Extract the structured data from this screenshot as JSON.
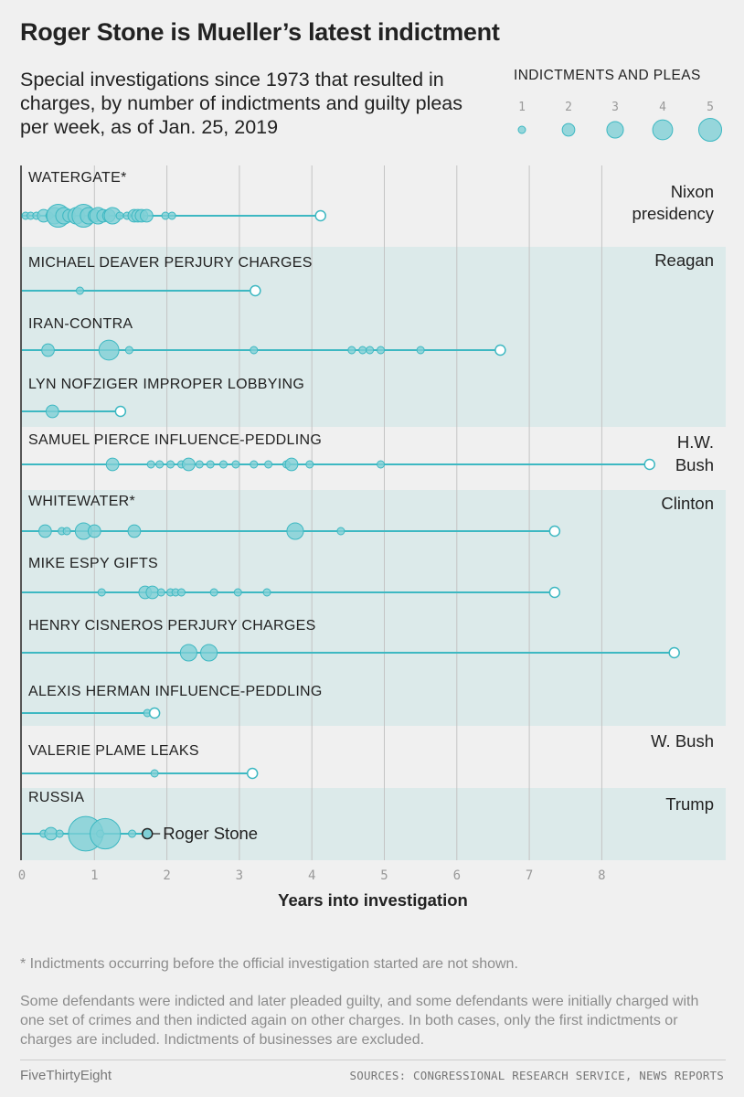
{
  "header": {
    "title": "Roger Stone is Mueller’s latest indictment",
    "subtitle": "Special investigations since 1973 that resulted in charges, by number of indictments and guilty pleas per week, as of Jan. 25, 2019"
  },
  "legend": {
    "title": "INDICTMENTS AND PLEAS",
    "sizes": [
      1,
      2,
      3,
      4,
      5
    ]
  },
  "colors": {
    "dot_fill": "#7fcfd6",
    "dot_stroke": "#3db8c2",
    "line": "#3db8c2",
    "band": "#dceaea",
    "background": "#f0f0f0"
  },
  "chart_data": {
    "type": "scatter",
    "xlabel": "Years into investigation",
    "xlim": [
      0,
      9.7
    ],
    "xticks": [
      0,
      1,
      2,
      3,
      4,
      5,
      6,
      7,
      8
    ],
    "presidencies": [
      {
        "label": "Nixon\npresidency",
        "rows": [
          0
        ],
        "shaded": false
      },
      {
        "label": "Reagan",
        "rows": [
          1,
          2,
          3
        ],
        "shaded": true
      },
      {
        "label": "H.W.\nBush",
        "rows": [
          4
        ],
        "shaded": false
      },
      {
        "label": "Clinton",
        "rows": [
          5,
          6,
          7,
          8
        ],
        "shaded": true
      },
      {
        "label": "W. Bush",
        "rows": [
          9
        ],
        "shaded": false
      },
      {
        "label": "Trump",
        "rows": [
          10
        ],
        "shaded": true
      }
    ],
    "investigations": [
      {
        "name": "WATERGATE*",
        "end": 4.12,
        "points": [
          [
            0.05,
            1
          ],
          [
            0.12,
            1
          ],
          [
            0.2,
            1
          ],
          [
            0.3,
            2
          ],
          [
            0.38,
            1
          ],
          [
            0.45,
            3
          ],
          [
            0.5,
            5
          ],
          [
            0.58,
            3
          ],
          [
            0.65,
            2
          ],
          [
            0.75,
            3
          ],
          [
            0.85,
            5
          ],
          [
            0.92,
            3
          ],
          [
            1.0,
            2
          ],
          [
            1.05,
            3
          ],
          [
            1.12,
            2
          ],
          [
            1.2,
            2
          ],
          [
            1.25,
            3
          ],
          [
            1.35,
            1
          ],
          [
            1.45,
            1
          ],
          [
            1.55,
            2
          ],
          [
            1.6,
            2
          ],
          [
            1.65,
            2
          ],
          [
            1.72,
            2
          ],
          [
            1.98,
            1
          ],
          [
            2.07,
            1
          ]
        ]
      },
      {
        "name": "MICHAEL DEAVER PERJURY CHARGES",
        "end": 3.22,
        "points": [
          [
            0.8,
            1
          ]
        ]
      },
      {
        "name": "IRAN-CONTRA",
        "end": 6.6,
        "points": [
          [
            0.36,
            2
          ],
          [
            1.2,
            4
          ],
          [
            1.48,
            1
          ],
          [
            3.2,
            1
          ],
          [
            4.55,
            1
          ],
          [
            4.7,
            1
          ],
          [
            4.8,
            1
          ],
          [
            4.95,
            1
          ],
          [
            5.5,
            1
          ]
        ]
      },
      {
        "name": "LYN NOFZIGER IMPROPER LOBBYING",
        "end": 1.36,
        "points": [
          [
            0.42,
            2
          ]
        ]
      },
      {
        "name": "SAMUEL PIERCE INFLUENCE-PEDDLING",
        "end": 8.66,
        "points": [
          [
            1.25,
            2
          ],
          [
            1.78,
            1
          ],
          [
            1.9,
            1
          ],
          [
            2.05,
            1
          ],
          [
            2.2,
            1
          ],
          [
            2.3,
            2
          ],
          [
            2.45,
            1
          ],
          [
            2.6,
            1
          ],
          [
            2.78,
            1
          ],
          [
            2.95,
            1
          ],
          [
            3.2,
            1
          ],
          [
            3.4,
            1
          ],
          [
            3.65,
            1
          ],
          [
            3.72,
            2
          ],
          [
            3.97,
            1
          ],
          [
            4.95,
            1
          ]
        ]
      },
      {
        "name": "WHITEWATER*",
        "end": 7.35,
        "points": [
          [
            0.32,
            2
          ],
          [
            0.55,
            1
          ],
          [
            0.62,
            1
          ],
          [
            0.85,
            3
          ],
          [
            1.0,
            2
          ],
          [
            1.55,
            2
          ],
          [
            3.77,
            3
          ],
          [
            4.4,
            1
          ]
        ]
      },
      {
        "name": "MIKE ESPY GIFTS",
        "end": 7.35,
        "points": [
          [
            1.1,
            1
          ],
          [
            1.7,
            2
          ],
          [
            1.8,
            2
          ],
          [
            1.92,
            1
          ],
          [
            2.05,
            1
          ],
          [
            2.12,
            1
          ],
          [
            2.2,
            1
          ],
          [
            2.65,
            1
          ],
          [
            2.98,
            1
          ],
          [
            3.38,
            1
          ]
        ]
      },
      {
        "name": "HENRY CISNEROS PERJURY CHARGES",
        "end": 9.0,
        "points": [
          [
            2.3,
            3
          ],
          [
            2.58,
            3
          ]
        ]
      },
      {
        "name": "ALEXIS HERMAN INFLUENCE-PEDDLING",
        "end": 1.83,
        "points": [
          [
            1.73,
            1
          ]
        ]
      },
      {
        "name": "VALERIE PLAME LEAKS",
        "end": 3.18,
        "points": [
          [
            1.83,
            1
          ]
        ]
      },
      {
        "name": "RUSSIA",
        "end": 1.73,
        "annotation": "Roger Stone",
        "points": [
          [
            0.3,
            1
          ],
          [
            0.4,
            2
          ],
          [
            0.52,
            1
          ],
          [
            0.88,
            10
          ],
          [
            1.08,
            1
          ],
          [
            1.15,
            8
          ],
          [
            1.52,
            1
          ]
        ]
      }
    ]
  },
  "footer": {
    "note1": "* Indictments occurring before the official investigation started are not shown.",
    "note2": "Some defendants were indicted and later pleaded guilty, and some defendants were initially charged with one set of crimes and then indicted again on other charges. In both cases, only the first indictments or charges are included. Indictments of businesses are excluded.",
    "brand": "FiveThirtyEight",
    "sources": "SOURCES: CONGRESSIONAL RESEARCH SERVICE, NEWS REPORTS"
  }
}
